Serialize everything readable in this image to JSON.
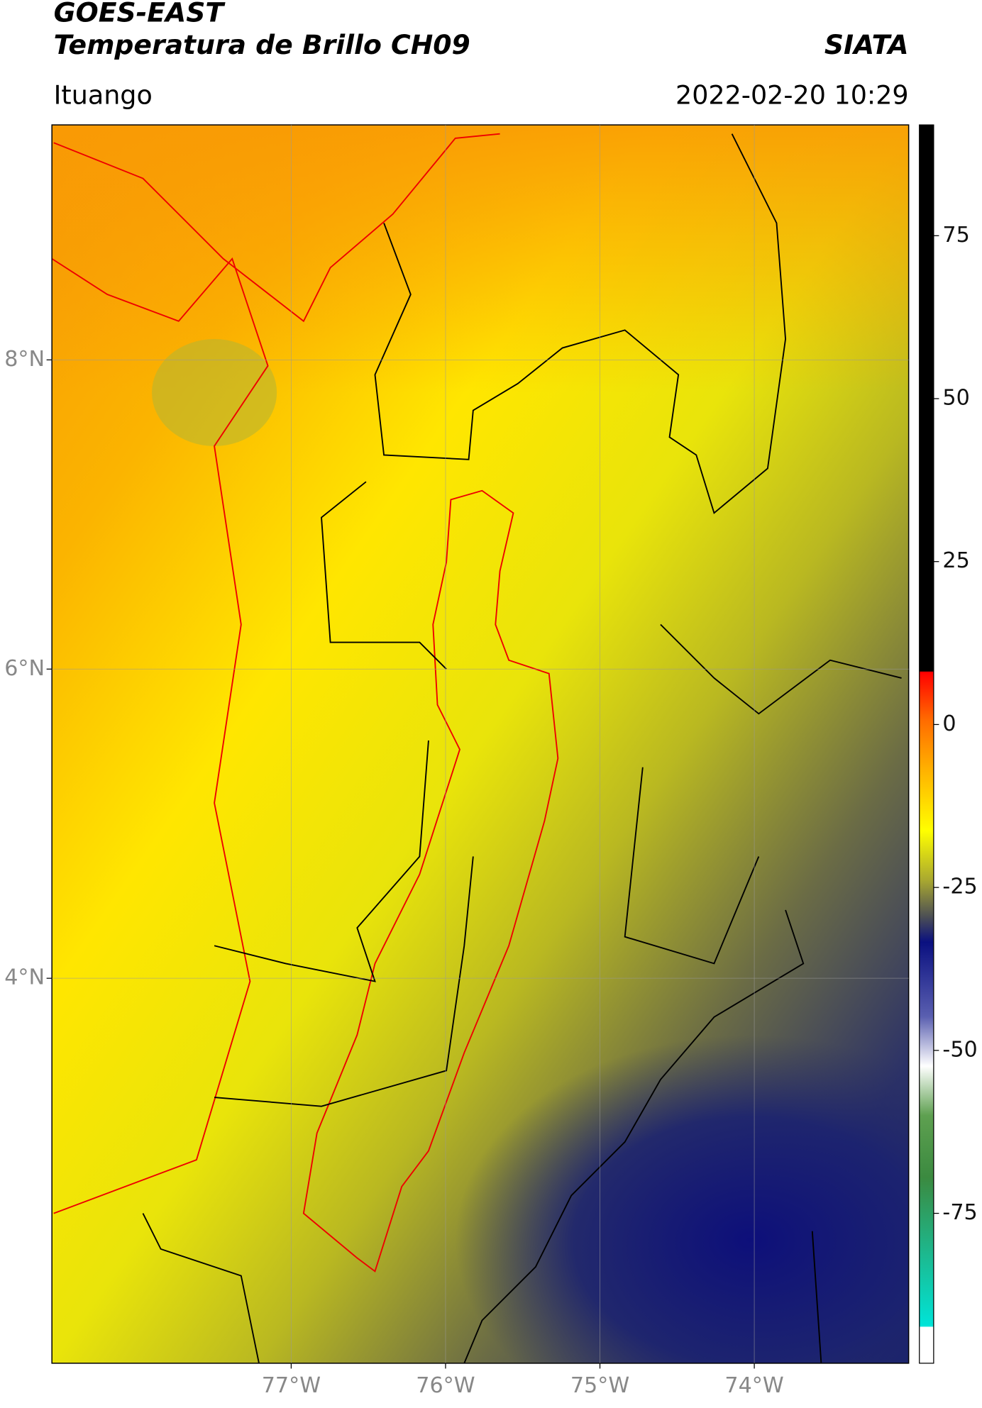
{
  "header": {
    "title_line1": "GOES-EAST",
    "title_line2": "Temperatura de Brillo CH09",
    "brand": "SIATA",
    "location": "Ituango",
    "datetime": "2022-02-20 10:29"
  },
  "map": {
    "xlim": [
      -78.55,
      -73.0
    ],
    "ylim": [
      1.51,
      9.52
    ],
    "xticks": [
      {
        "value": -77,
        "label": "77°W"
      },
      {
        "value": -76,
        "label": "76°W"
      },
      {
        "value": -75,
        "label": "75°W"
      },
      {
        "value": -74,
        "label": "74°W"
      }
    ],
    "yticks": [
      {
        "value": 8,
        "label": "8°N"
      },
      {
        "value": 6,
        "label": "6°N"
      },
      {
        "value": 4,
        "label": "4°N"
      }
    ]
  },
  "colorbar": {
    "lim": [
      -98,
      92
    ],
    "ticks": [
      75,
      50,
      25,
      0,
      -25,
      -50,
      -75
    ]
  }
}
